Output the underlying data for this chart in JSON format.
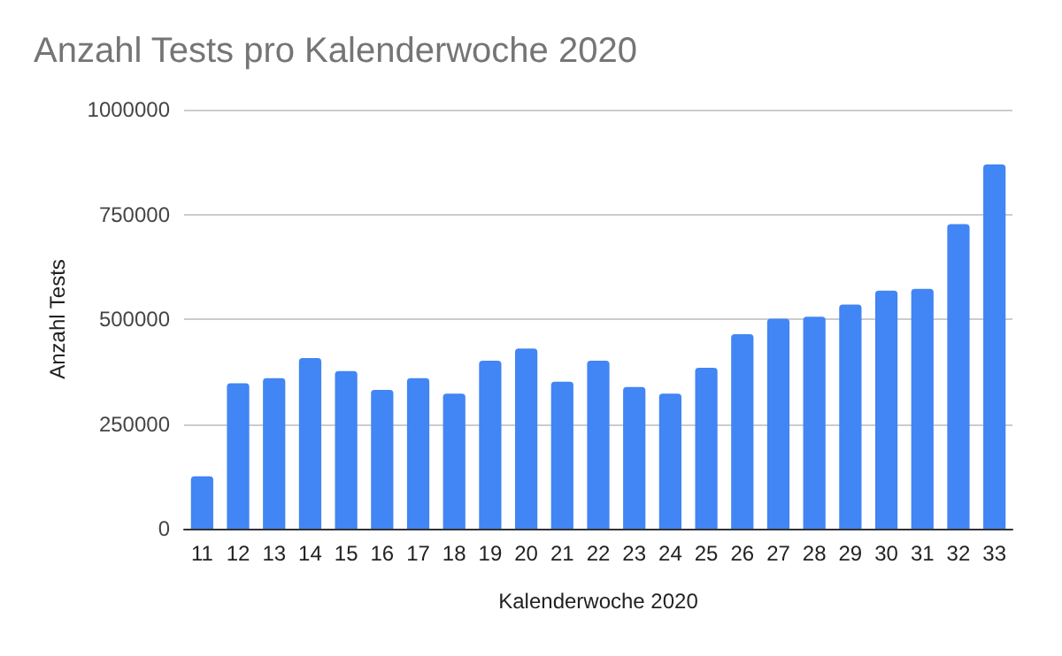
{
  "chart_data": {
    "type": "bar",
    "title": "Anzahl Tests pro Kalenderwoche 2020",
    "xlabel": "Kalenderwoche 2020",
    "ylabel": "Anzahl Tests",
    "categories": [
      "11",
      "12",
      "13",
      "14",
      "15",
      "16",
      "17",
      "18",
      "19",
      "20",
      "21",
      "22",
      "23",
      "24",
      "25",
      "26",
      "27",
      "28",
      "29",
      "30",
      "31",
      "32",
      "33"
    ],
    "values": [
      125000,
      347000,
      359000,
      407000,
      376000,
      331000,
      359000,
      322000,
      401000,
      430000,
      351000,
      401000,
      338000,
      322000,
      384000,
      464000,
      501000,
      506000,
      535000,
      568000,
      572000,
      727000,
      869000
    ],
    "color": "#4285f4",
    "ylim": [
      0,
      1000000
    ],
    "yticks": [
      0,
      250000,
      500000,
      750000,
      1000000
    ],
    "grid": "y"
  }
}
